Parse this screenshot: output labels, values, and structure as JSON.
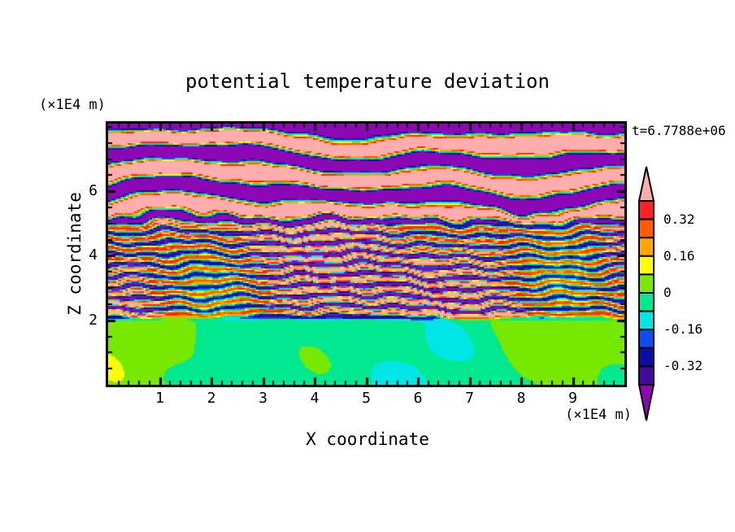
{
  "title": "potential temperature deviation",
  "timestamp": "t=6.7788e+06",
  "axes": {
    "x_label": "X coordinate",
    "y_label": "Z coordinate",
    "x_unit_label": "(×1E4 m)",
    "y_unit_label": "(×1E4 m)",
    "x_tick_labels": [
      "1",
      "2",
      "3",
      "4",
      "5",
      "6",
      "7",
      "8",
      "9"
    ],
    "y_tick_labels": [
      "2",
      "4",
      "6"
    ]
  },
  "colorbar": {
    "tick_labels": [
      "0.32",
      "0.16",
      "0",
      "-0.16",
      "-0.32"
    ],
    "arrow_over_color": "#ffadad",
    "arrow_under_color": "#8c08b4"
  },
  "chart_data": {
    "type": "heatmap",
    "subtype": "filled-contour",
    "title": "potential temperature deviation",
    "xlabel": "X coordinate",
    "ylabel": "Z coordinate",
    "x_unit": "×1E4 m",
    "z_unit": "×1E4 m",
    "time_annotation": "t=6.7788e+06",
    "x_range": [
      0,
      10
    ],
    "z_range": [
      0,
      8.1
    ],
    "x_major_ticks": [
      1,
      2,
      3,
      4,
      5,
      6,
      7,
      8,
      9
    ],
    "x_minor_tick_step": 0.2,
    "z_major_ticks": [
      2,
      4,
      6
    ],
    "z_minor_tick_step": 0.5,
    "contour_levels": [
      -0.4,
      -0.32,
      -0.24,
      -0.16,
      -0.08,
      0,
      0.08,
      0.16,
      0.24,
      0.32,
      0.4
    ],
    "colorbar_labeled_levels": [
      0.32,
      0.16,
      0,
      -0.16,
      -0.32
    ],
    "palette_ascending": [
      "#8c08b4",
      "#44089e",
      "#0c0ca8",
      "#0b4df0",
      "#00e6e6",
      "#00e890",
      "#77e800",
      "#ffff00",
      "#ffa600",
      "#ff5c00",
      "#ff2222",
      "#ffadad"
    ],
    "legend_position": "right",
    "grid": false,
    "field_structure": {
      "z_0_to_2": "well-mixed layer: deviation near 0; smooth spring-green background with chartreuse blobs, rare yellow/cyan specks",
      "z_2_to_5.3": "turbulent layered region: fine wavy horizontal striations cycling through the full -0.4..0.4 range (rainbow stripes, occasional pink/violet caps)",
      "z_5.3_to_8.1": "strongly stratified wave region: thick alternating saturated bands beyond +0.4 (pink) and below -0.4 (violet) separated by thin rainbow transition edges; topmost strip violet"
    }
  },
  "layout_colors": {
    "background": "#ffffff",
    "frame": "#000000",
    "text": "#000000"
  }
}
